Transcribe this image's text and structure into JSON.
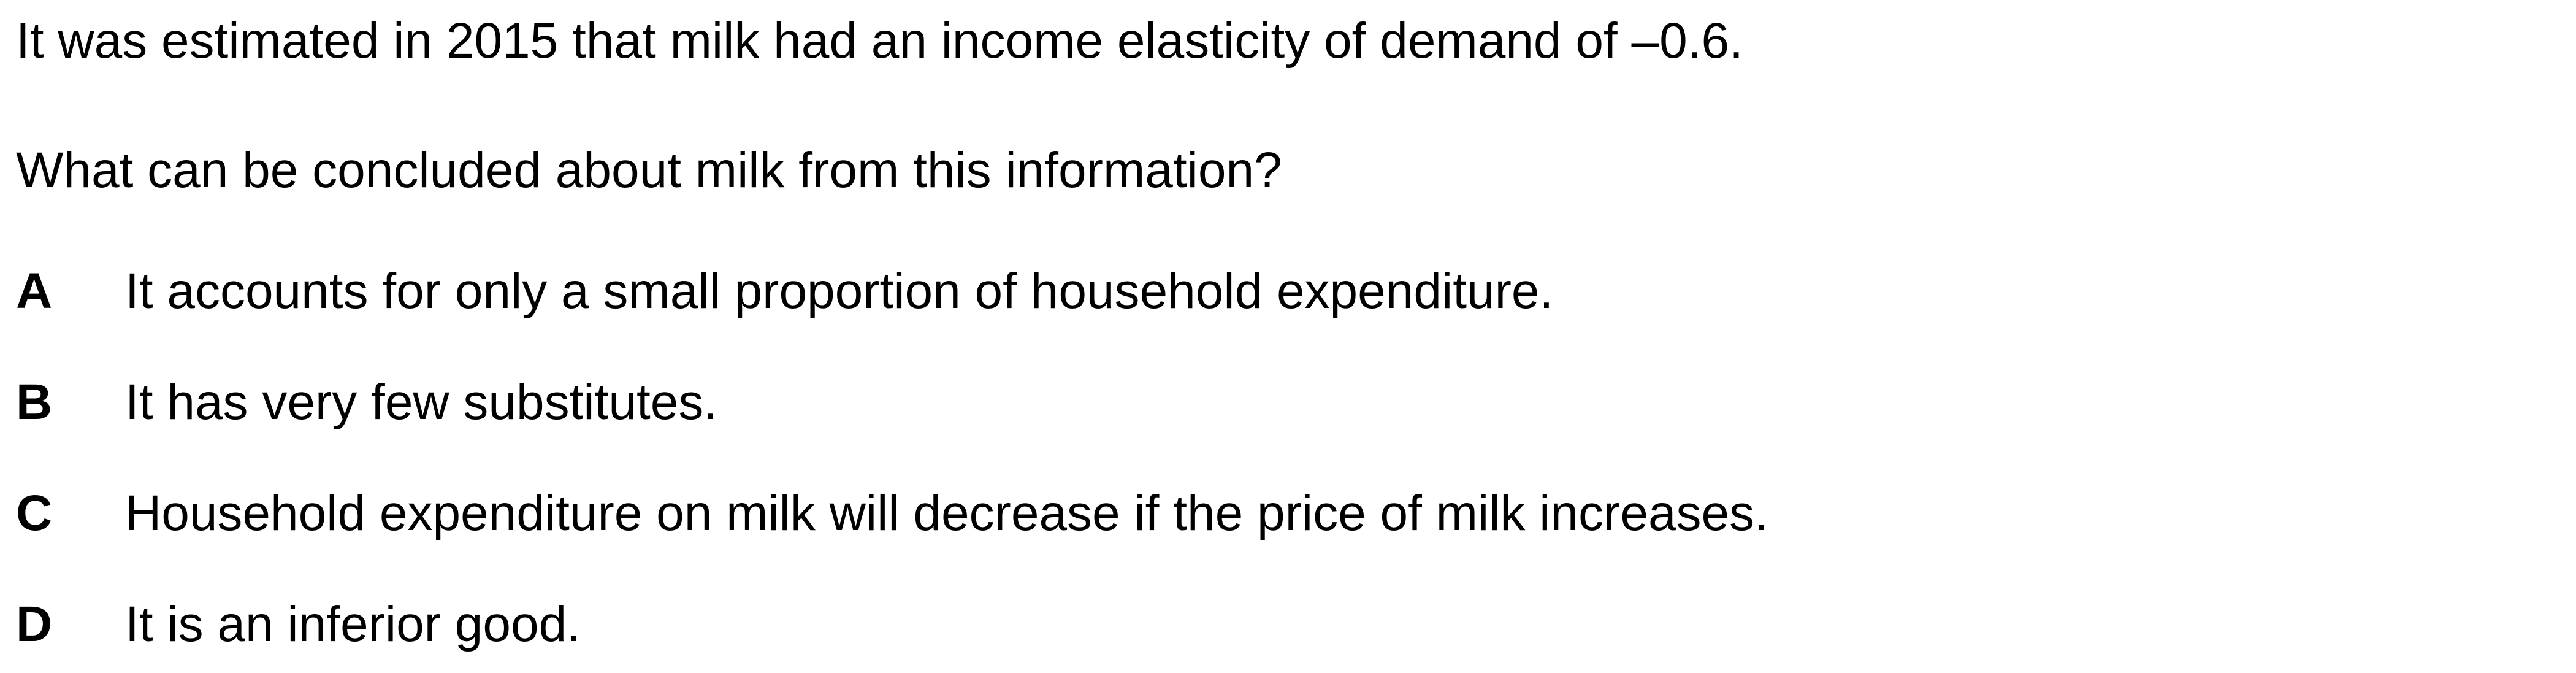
{
  "question": {
    "stem": "It was estimated in 2015 that milk had an income elasticity of demand of –0.6.",
    "prompt": "What can be concluded about milk from this information?"
  },
  "options": [
    {
      "letter": "A",
      "text": "It accounts for only a small proportion of household expenditure."
    },
    {
      "letter": "B",
      "text": "It has very few substitutes."
    },
    {
      "letter": "C",
      "text": "Household expenditure on milk will decrease if the price of milk increases."
    },
    {
      "letter": "D",
      "text": "It is an inferior good."
    }
  ]
}
